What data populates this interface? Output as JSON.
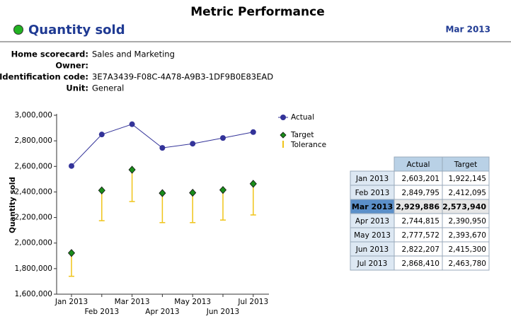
{
  "header": {
    "title": "Metric Performance",
    "metric": "Quantity sold",
    "period": "Mar 2013"
  },
  "details": [
    {
      "label": "Home scorecard:",
      "value": "Sales and Marketing"
    },
    {
      "label": "Owner:"
    },
    {
      "label": "Identification code:",
      "value": "3E7A3439-F08C-4A78-A9B3-1DF9B0E83EAD"
    },
    {
      "label": "Unit:",
      "value": "General"
    }
  ],
  "chart_data": {
    "type": "line",
    "ylabel": "Quantity sold",
    "categories": [
      "Jan 2013",
      "Feb 2013",
      "Mar 2013",
      "Apr 2013",
      "May 2013",
      "Jun 2013",
      "Jul 2013"
    ],
    "series": [
      {
        "name": "Actual",
        "color": "#333399",
        "marker": "circle",
        "line": true,
        "values": [
          2603201,
          2849795,
          2929886,
          2744815,
          2777572,
          2822207,
          2868410
        ]
      },
      {
        "name": "Target",
        "color": "#1a8c1a",
        "marker": "diamond",
        "line": false,
        "values": [
          1922145,
          2412095,
          2573940,
          2390950,
          2393670,
          2415300,
          2463780
        ]
      }
    ],
    "tolerance": {
      "name": "Tolerance",
      "color": "#f0c419",
      "low": [
        1740000,
        2175000,
        2325000,
        2160000,
        2160000,
        2180000,
        2220000
      ]
    },
    "ylim": [
      1600000,
      3000000
    ],
    "yticks": [
      {
        "value": 1600000,
        "label": "1,600,000"
      },
      {
        "value": 1800000,
        "label": "1,800,000"
      },
      {
        "value": 2000000,
        "label": "2,000,000"
      },
      {
        "value": 2200000,
        "label": "2,200,000"
      },
      {
        "value": 2400000,
        "label": "2,400,000"
      },
      {
        "value": 2600000,
        "label": "2,600,000"
      },
      {
        "value": 2800000,
        "label": "2,800,000"
      },
      {
        "value": 3000000,
        "label": "3,000,000"
      }
    ]
  },
  "table": {
    "columns": [
      "Actual",
      "Target"
    ],
    "highlight_row": 2,
    "rows": [
      [
        "Jan 2013",
        "2,603,201",
        "1,922,145"
      ],
      [
        "Feb 2013",
        "2,849,795",
        "2,412,095"
      ],
      [
        "Mar 2013",
        "2,929,886",
        "2,573,940"
      ],
      [
        "Apr 2013",
        "2,744,815",
        "2,390,950"
      ],
      [
        "May 2013",
        "2,777,572",
        "2,393,670"
      ],
      [
        "Jun 2013",
        "2,822,207",
        "2,415,300"
      ],
      [
        "Jul 2013",
        "2,868,410",
        "2,463,780"
      ]
    ]
  }
}
